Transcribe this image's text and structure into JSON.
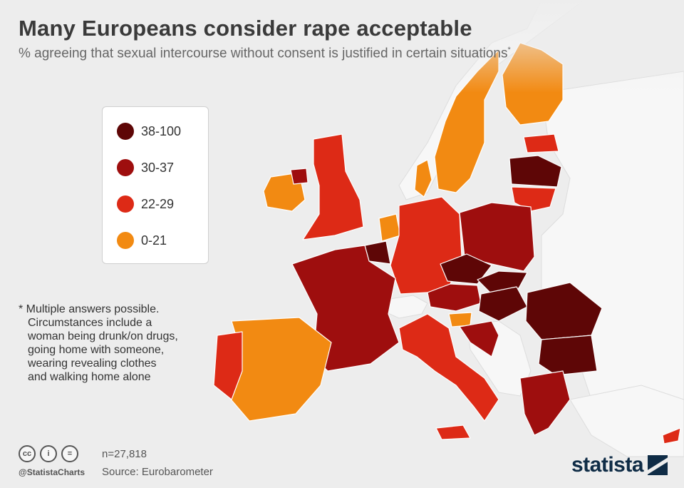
{
  "title": "Many Europeans consider rape acceptable",
  "subtitle": "% agreeing that sexual intercourse without consent is justified in certain situations",
  "subtitle_mark": "*",
  "legend": [
    {
      "label": "38-100",
      "color": "#5e0606"
    },
    {
      "label": "30-37",
      "color": "#9e0e0e"
    },
    {
      "label": "22-29",
      "color": "#dd2a16"
    },
    {
      "label": "0-21",
      "color": "#f28a12"
    }
  ],
  "footnote": {
    "first": "* Multiple answers possible.",
    "rest": [
      "Circumstances include a",
      "woman being drunk/on drugs,",
      "going home with someone,",
      "wearing revealing clothes",
      "and walking home alone"
    ]
  },
  "map": {
    "country_colors": {
      "sweden": "#f28a12",
      "finland": "#f28a12",
      "denmark": "#f28a12",
      "ireland": "#f28a12",
      "netherlands": "#f28a12",
      "spain": "#f28a12",
      "slovenia": "#f28a12",
      "uk": "#dd2a16",
      "germany": "#dd2a16",
      "italy": "#dd2a16",
      "portugal": "#dd2a16",
      "lithuania": "#dd2a16",
      "estonia": "#dd2a16",
      "malta": "#dd2a16",
      "cyprus": "#dd2a16",
      "france": "#9e0e0e",
      "poland": "#9e0e0e",
      "austria": "#9e0e0e",
      "croatia": "#9e0e0e",
      "greece": "#9e0e0e",
      "northern_ireland": "#9e0e0e",
      "belgium": "#5e0606",
      "czechia": "#5e0606",
      "slovakia": "#5e0606",
      "hungary": "#5e0606",
      "romania": "#5e0606",
      "bulgaria": "#5e0606",
      "latvia": "#5e0606"
    },
    "non_eu_color": "#f7f7f7"
  },
  "footer": {
    "cc_icons": [
      "cc",
      "i",
      "="
    ],
    "handle": "@StatistaCharts",
    "sample": "n=27,818",
    "source": "Source: Eurobarometer",
    "brand": "statista"
  }
}
